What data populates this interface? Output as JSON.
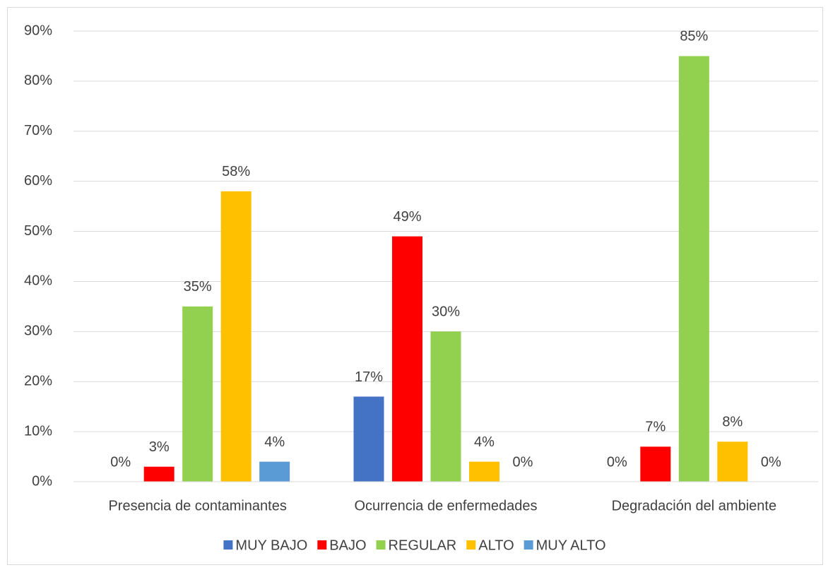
{
  "chart_data": {
    "type": "bar",
    "categories": [
      "Presencia de contaminantes",
      "Ocurrencia de enfermedades",
      "Degradación del ambiente"
    ],
    "series": [
      {
        "name": "MUY BAJO",
        "color": "#4472c4",
        "values": [
          0,
          17,
          0
        ],
        "value_labels": [
          "0%",
          "17%",
          "0%"
        ]
      },
      {
        "name": "BAJO",
        "color": "#ff0000",
        "values": [
          3,
          49,
          7
        ],
        "value_labels": [
          "3%",
          "49%",
          "7%"
        ]
      },
      {
        "name": "REGULAR",
        "color": "#92d050",
        "values": [
          35,
          30,
          85
        ],
        "value_labels": [
          "35%",
          "30%",
          "85%"
        ]
      },
      {
        "name": "ALTO",
        "color": "#ffc000",
        "values": [
          58,
          4,
          8
        ],
        "value_labels": [
          "58%",
          "4%",
          "8%"
        ]
      },
      {
        "name": "MUY ALTO",
        "color": "#5b9bd5",
        "values": [
          4,
          0,
          0
        ],
        "value_labels": [
          "4%",
          "0%",
          "0%"
        ]
      }
    ],
    "ylim": [
      0,
      90
    ],
    "yticks": [
      {
        "value": 0,
        "label": "0%"
      },
      {
        "value": 10,
        "label": "10%"
      },
      {
        "value": 20,
        "label": "20%"
      },
      {
        "value": 30,
        "label": "30%"
      },
      {
        "value": 40,
        "label": "40%"
      },
      {
        "value": 50,
        "label": "50%"
      },
      {
        "value": 60,
        "label": "60%"
      },
      {
        "value": 70,
        "label": "70%"
      },
      {
        "value": 80,
        "label": "80%"
      },
      {
        "value": 90,
        "label": "90%"
      }
    ],
    "grid": true,
    "legend": "bottom"
  }
}
